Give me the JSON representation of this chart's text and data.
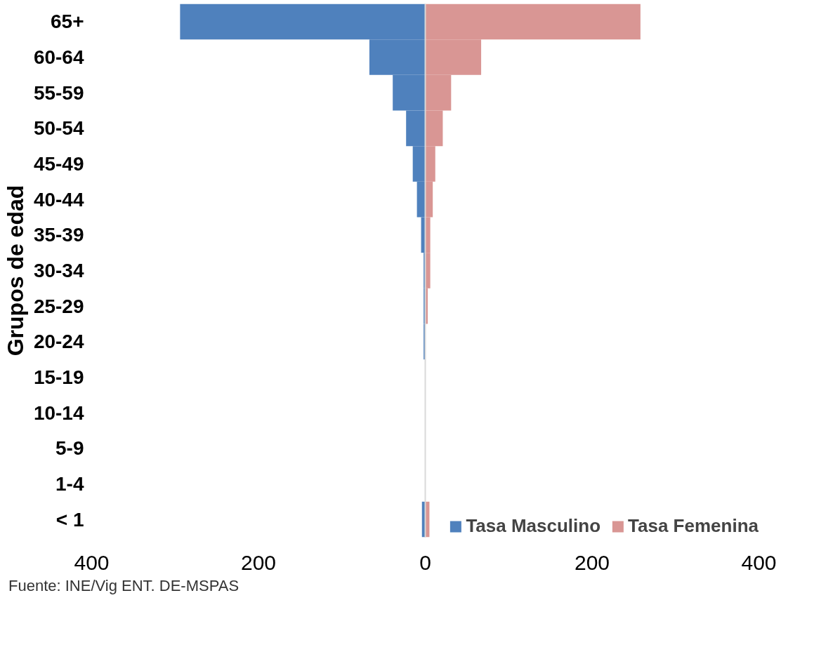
{
  "chart_data": {
    "type": "bar",
    "orientation": "horizontal",
    "stacked": true,
    "ylabel": "Grupos de edad",
    "categories": [
      "65+",
      "60-64",
      "55-59",
      "50-54",
      "45-49",
      "40-44",
      "35-39",
      "30-34",
      "25-29",
      "20-24",
      "15-19",
      "10-14",
      "5-9",
      "1-4",
      "< 1"
    ],
    "series": [
      {
        "name": "Tasa Masculino",
        "color": "#4f81bd",
        "values": [
          -294,
          -67,
          -39,
          -23,
          -15,
          -10,
          -5,
          -2,
          -2,
          -2,
          0,
          0,
          0,
          0,
          -4
        ]
      },
      {
        "name": "Tasa Femenina",
        "color": "#d99694",
        "values": [
          258,
          67,
          31,
          21,
          12,
          9,
          6,
          6,
          3,
          0,
          0,
          0,
          0,
          0,
          5
        ]
      }
    ],
    "xlim": [
      -400,
      400
    ],
    "xticks": [
      {
        "value": -400,
        "label": "400"
      },
      {
        "value": -200,
        "label": "200"
      },
      0,
      200,
      400
    ],
    "ref_lines": [
      {
        "axis": "x",
        "value": 0,
        "color": "#d9d9d9"
      }
    ],
    "grid": false,
    "legend": "bottom right",
    "annotations": [
      "Fuente: INE/Vig ENT. DE-MSPAS"
    ]
  }
}
